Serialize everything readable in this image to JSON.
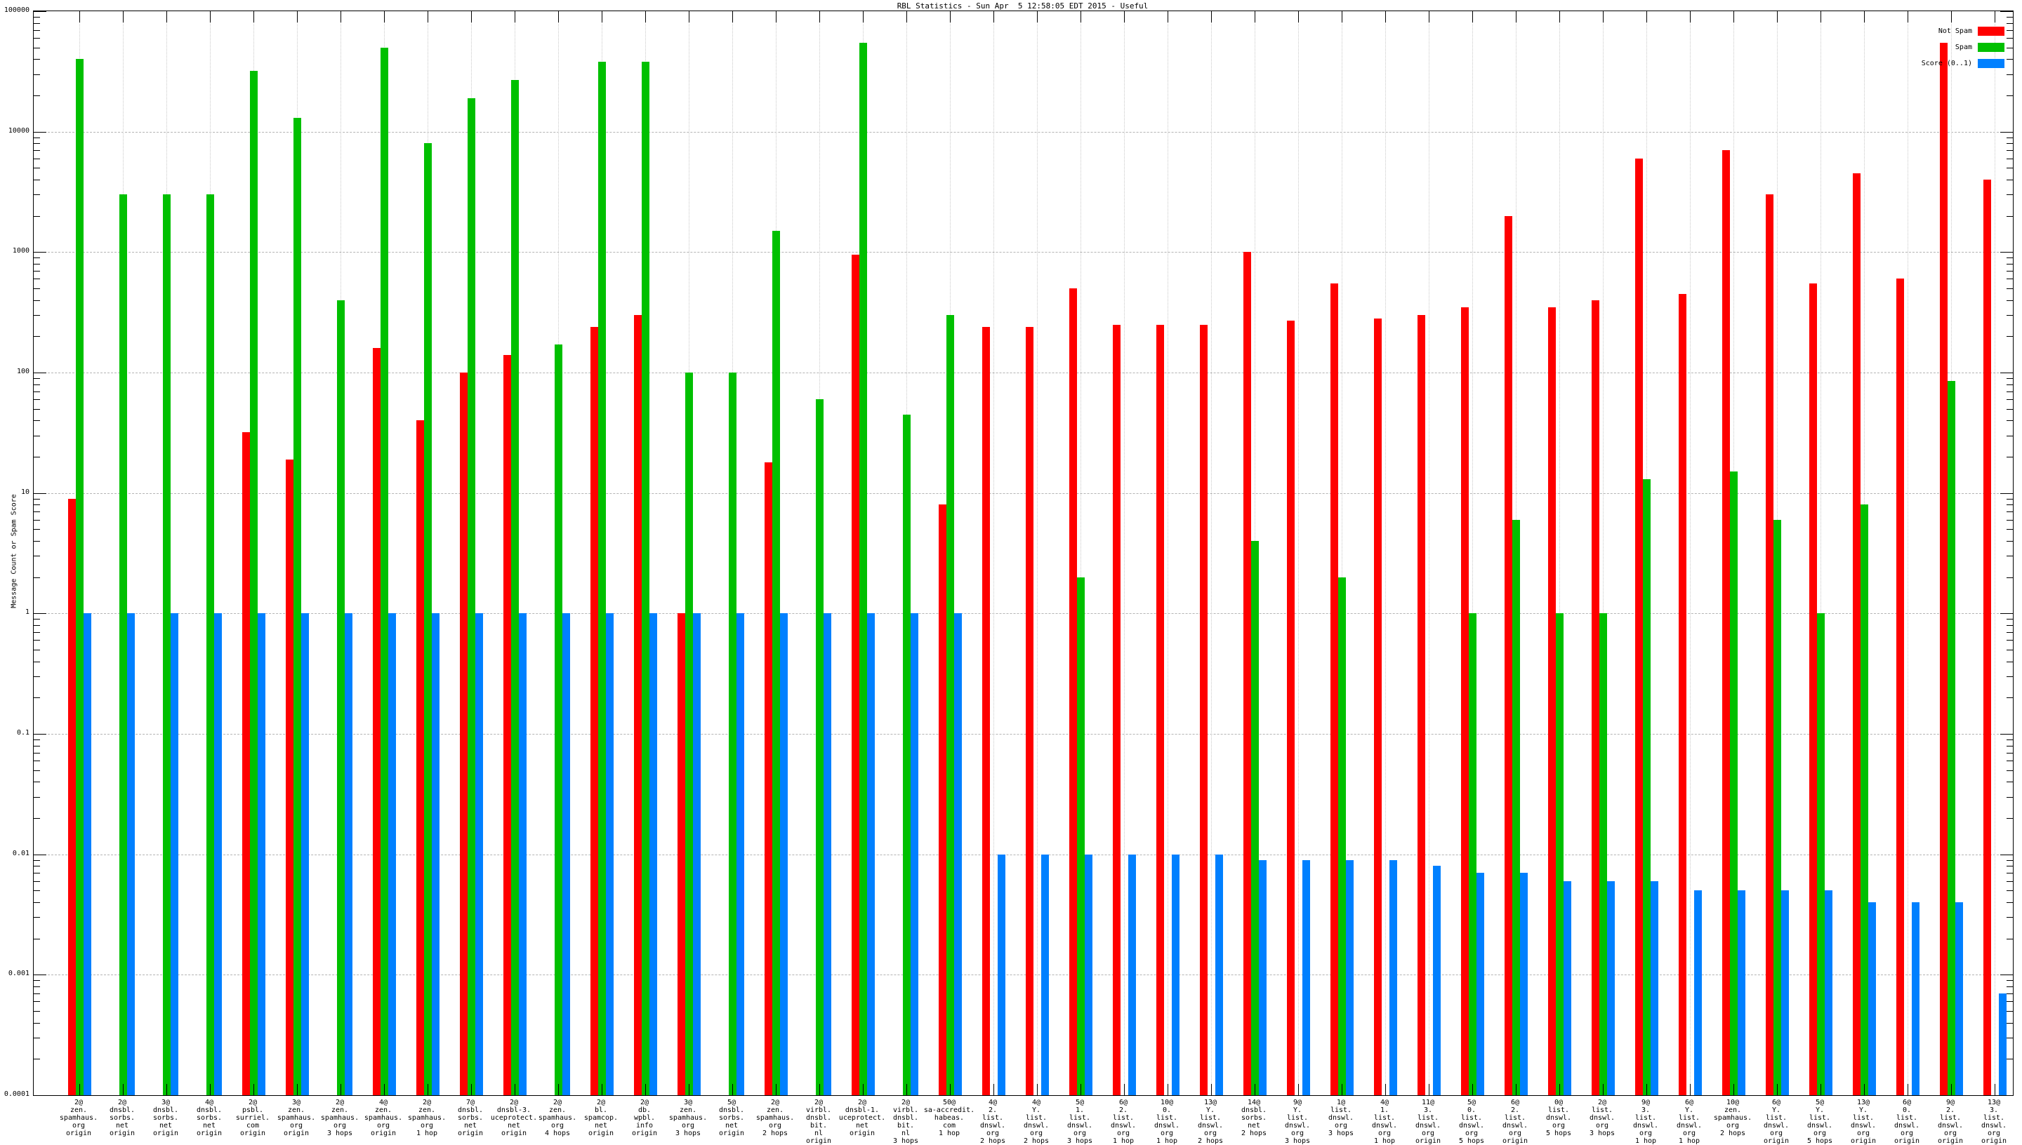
{
  "chart_data": {
    "type": "bar",
    "title": "RBL Statistics - Sun Apr  5 12:58:05 EDT 2015 - Useful",
    "ylabel": "Message Count or Spam Score",
    "y_scale": "log",
    "y_range": [
      0.0001,
      100000
    ],
    "y_ticks": [
      "100000",
      "10000",
      "1000",
      "100",
      "10",
      "1",
      "0.1",
      "0.01",
      "0.001",
      "0.0001"
    ],
    "grid": true,
    "legend_position": "top-right",
    "legend": [
      {
        "label": "Not Spam",
        "color": "#ff0000"
      },
      {
        "label": "Spam",
        "color": "#00c000"
      },
      {
        "label": "Score (0..1)",
        "color": "#0080ff"
      }
    ],
    "series_names": [
      "Not Spam",
      "Spam",
      "Score (0..1)"
    ],
    "groups": [
      {
        "label": [
          "2@",
          "zen.",
          "spamhaus.",
          "org",
          "origin"
        ],
        "not_spam": 9,
        "spam": 40000,
        "score": 1
      },
      {
        "label": [
          "2@",
          "dnsbl.",
          "sorbs.",
          "net",
          "origin"
        ],
        "not_spam": 0,
        "spam": 3000,
        "score": 1
      },
      {
        "label": [
          "3@",
          "dnsbl.",
          "sorbs.",
          "net",
          "origin"
        ],
        "not_spam": 0,
        "spam": 3000,
        "score": 1
      },
      {
        "label": [
          "4@",
          "dnsbl.",
          "sorbs.",
          "net",
          "origin"
        ],
        "not_spam": 0,
        "spam": 3000,
        "score": 1
      },
      {
        "label": [
          "2@",
          "psbl.",
          "surriel.",
          "com",
          "origin"
        ],
        "not_spam": 32,
        "spam": 32000,
        "score": 1
      },
      {
        "label": [
          "3@",
          "zen.",
          "spamhaus.",
          "org",
          "origin"
        ],
        "not_spam": 19,
        "spam": 13000,
        "score": 1
      },
      {
        "label": [
          "2@",
          "zen.",
          "spamhaus.",
          "org",
          "3 hops"
        ],
        "not_spam": 0,
        "spam": 400,
        "score": 1
      },
      {
        "label": [
          "4@",
          "zen.",
          "spamhaus.",
          "org",
          "origin"
        ],
        "not_spam": 160,
        "spam": 50000,
        "score": 1
      },
      {
        "label": [
          "2@",
          "zen.",
          "spamhaus.",
          "org",
          "1 hop"
        ],
        "not_spam": 40,
        "spam": 8000,
        "score": 1
      },
      {
        "label": [
          "7@",
          "dnsbl.",
          "sorbs.",
          "net",
          "origin"
        ],
        "not_spam": 100,
        "spam": 19000,
        "score": 1
      },
      {
        "label": [
          "2@",
          "dnsbl-3.",
          "uceprotect.",
          "net",
          "origin"
        ],
        "not_spam": 140,
        "spam": 27000,
        "score": 1
      },
      {
        "label": [
          "2@",
          "zen.",
          "spamhaus.",
          "org",
          "4 hops"
        ],
        "not_spam": 0,
        "spam": 170,
        "score": 1
      },
      {
        "label": [
          "2@",
          "bl.",
          "spamcop.",
          "net",
          "origin"
        ],
        "not_spam": 240,
        "spam": 38000,
        "score": 1
      },
      {
        "label": [
          "2@",
          "db.",
          "wpbl.",
          "info",
          "origin"
        ],
        "not_spam": 300,
        "spam": 38000,
        "score": 1
      },
      {
        "label": [
          "3@",
          "zen.",
          "spamhaus.",
          "org",
          "3 hops"
        ],
        "not_spam": 1,
        "spam": 100,
        "score": 1
      },
      {
        "label": [
          "5@",
          "dnsbl.",
          "sorbs.",
          "net",
          "origin"
        ],
        "not_spam": 0,
        "spam": 100,
        "score": 1
      },
      {
        "label": [
          "2@",
          "zen.",
          "spamhaus.",
          "org",
          "2 hops"
        ],
        "not_spam": 18,
        "spam": 1500,
        "score": 1
      },
      {
        "label": [
          "2@",
          "virbl.",
          "dnsbl.",
          "bit.",
          "nl",
          "origin"
        ],
        "not_spam": 0,
        "spam": 60,
        "score": 1
      },
      {
        "label": [
          "2@",
          "dnsbl-1.",
          "uceprotect.",
          "net",
          "origin"
        ],
        "not_spam": 950,
        "spam": 55000,
        "score": 1
      },
      {
        "label": [
          "2@",
          "virbl.",
          "dnsbl.",
          "bit.",
          "nl",
          "3 hops"
        ],
        "not_spam": 0,
        "spam": 45,
        "score": 1
      },
      {
        "label": [
          "50@",
          "sa-accredit.",
          "habeas.",
          "com",
          "1 hop"
        ],
        "not_spam": 8,
        "spam": 300,
        "score": 1
      },
      {
        "label": [
          "4@",
          "2.",
          "list.",
          "dnswl.",
          "org",
          "2 hops"
        ],
        "not_spam": 240,
        "spam": 0,
        "score": 0.01
      },
      {
        "label": [
          "4@",
          "Y.",
          "list.",
          "dnswl.",
          "org",
          "2 hops"
        ],
        "not_spam": 240,
        "spam": 0,
        "score": 0.01
      },
      {
        "label": [
          "5@",
          "1.",
          "list.",
          "dnswl.",
          "org",
          "3 hops"
        ],
        "not_spam": 500,
        "spam": 2,
        "score": 0.01
      },
      {
        "label": [
          "6@",
          "2.",
          "list.",
          "dnswl.",
          "org",
          "1 hop"
        ],
        "not_spam": 250,
        "spam": 0,
        "score": 0.01
      },
      {
        "label": [
          "10@",
          "0.",
          "list.",
          "dnswl.",
          "org",
          "1 hop"
        ],
        "not_spam": 250,
        "spam": 0,
        "score": 0.01
      },
      {
        "label": [
          "13@",
          "Y.",
          "list.",
          "dnswl.",
          "org",
          "2 hops"
        ],
        "not_spam": 250,
        "spam": 0,
        "score": 0.01
      },
      {
        "label": [
          "14@",
          "dnsbl.",
          "sorbs.",
          "net",
          "2 hops"
        ],
        "not_spam": 1000,
        "spam": 4,
        "score": 0.009
      },
      {
        "label": [
          "9@",
          "Y.",
          "list.",
          "dnswl.",
          "org",
          "3 hops"
        ],
        "not_spam": 270,
        "spam": 0,
        "score": 0.009
      },
      {
        "label": [
          "1@",
          "list.",
          "dnswl.",
          "org",
          "3 hops"
        ],
        "not_spam": 550,
        "spam": 2,
        "score": 0.009
      },
      {
        "label": [
          "4@",
          "1.",
          "list.",
          "dnswl.",
          "org",
          "1 hop"
        ],
        "not_spam": 280,
        "spam": 0,
        "score": 0.009
      },
      {
        "label": [
          "11@",
          "3.",
          "list.",
          "dnswl.",
          "org",
          "origin"
        ],
        "not_spam": 300,
        "spam": 0,
        "score": 0.008
      },
      {
        "label": [
          "5@",
          "0.",
          "list.",
          "dnswl.",
          "org",
          "5 hops"
        ],
        "not_spam": 350,
        "spam": 1,
        "score": 0.007
      },
      {
        "label": [
          "6@",
          "2.",
          "list.",
          "dnswl.",
          "org",
          "origin"
        ],
        "not_spam": 2000,
        "spam": 6,
        "score": 0.007
      },
      {
        "label": [
          "0@",
          "list.",
          "dnswl.",
          "org",
          "5 hops"
        ],
        "not_spam": 350,
        "spam": 1,
        "score": 0.006
      },
      {
        "label": [
          "2@",
          "list.",
          "dnswl.",
          "org",
          "3 hops"
        ],
        "not_spam": 400,
        "spam": 1,
        "score": 0.006
      },
      {
        "label": [
          "9@",
          "3.",
          "list.",
          "dnswl.",
          "org",
          "1 hop"
        ],
        "not_spam": 6000,
        "spam": 13,
        "score": 0.006
      },
      {
        "label": [
          "6@",
          "Y.",
          "list.",
          "dnswl.",
          "org",
          "1 hop"
        ],
        "not_spam": 450,
        "spam": 0,
        "score": 0.005
      },
      {
        "label": [
          "10@",
          "zen.",
          "spamhaus.",
          "org",
          "2 hops"
        ],
        "not_spam": 7000,
        "spam": 15,
        "score": 0.005
      },
      {
        "label": [
          "6@",
          "Y.",
          "list.",
          "dnswl.",
          "org",
          "origin"
        ],
        "not_spam": 3000,
        "spam": 6,
        "score": 0.005
      },
      {
        "label": [
          "5@",
          "Y.",
          "list.",
          "dnswl.",
          "org",
          "5 hops"
        ],
        "not_spam": 550,
        "spam": 1,
        "score": 0.005
      },
      {
        "label": [
          "13@",
          "Y.",
          "list.",
          "dnswl.",
          "org",
          "origin"
        ],
        "not_spam": 4500,
        "spam": 8,
        "score": 0.004
      },
      {
        "label": [
          "6@",
          "0.",
          "list.",
          "dnswl.",
          "org",
          "origin"
        ],
        "not_spam": 600,
        "spam": 0,
        "score": 0.004
      },
      {
        "label": [
          "9@",
          "2.",
          "list.",
          "dnswl.",
          "org",
          "origin"
        ],
        "not_spam": 55000,
        "spam": 85,
        "score": 0.004
      },
      {
        "label": [
          "13@",
          "3.",
          "list.",
          "dnswl.",
          "org",
          "origin"
        ],
        "not_spam": 4000,
        "spam": 0,
        "score": 0.0007
      }
    ]
  }
}
